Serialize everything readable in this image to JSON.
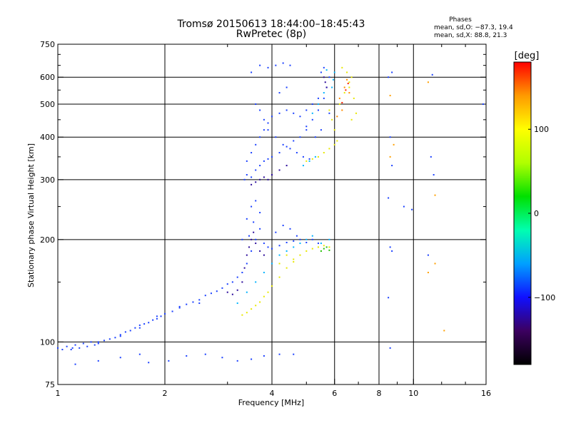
{
  "chart_data": {
    "type": "scatter",
    "title": "Tromsø 20150613 18:44:00–18:45:43",
    "subtitle": "RwPretec (8p)",
    "xlabel": "Frequency [MHz]",
    "ylabel": "Stationary phase Virtual Height [km]",
    "x_scale": "log",
    "y_scale": "log",
    "xlim": [
      1,
      16
    ],
    "ylim": [
      75,
      750
    ],
    "x_ticks": [
      1,
      2,
      4,
      6,
      8,
      10,
      16
    ],
    "x_tick_labels": [
      "1",
      "2",
      "4",
      "6",
      "8",
      "10",
      "16"
    ],
    "y_ticks": [
      75,
      100,
      200,
      300,
      400,
      500,
      600,
      750
    ],
    "y_tick_labels": [
      "75",
      "100",
      "200",
      "300",
      "400",
      "500",
      "600",
      "750"
    ],
    "grid_x": [
      2,
      4,
      6,
      8,
      10
    ],
    "grid_y": [
      100,
      200,
      300,
      400,
      500,
      600
    ],
    "grid": true,
    "stats": {
      "heading": "Phases",
      "lines": [
        "mean, sd,O: −87.3, 19.4",
        "mean, sd,X:  88.8, 21.3"
      ]
    },
    "colorbar": {
      "label": "[deg]",
      "range": [
        -180,
        180
      ],
      "ticks": [
        100,
        0,
        -100
      ],
      "tick_labels": [
        "100",
        "0",
        "−100"
      ],
      "colors": [
        "#000000",
        "#3c0060",
        "#1010ff",
        "#00a0ff",
        "#00ffb0",
        "#00e000",
        "#b0ff00",
        "#ffff00",
        "#ff9a00",
        "#ff0000"
      ]
    },
    "series": [
      {
        "name": "",
        "color": "#1a40ff",
        "points": [
          [
            1.0,
            96
          ],
          [
            1.03,
            95
          ],
          [
            1.06,
            97
          ],
          [
            1.09,
            95
          ],
          [
            1.12,
            98
          ],
          [
            1.15,
            96
          ],
          [
            1.18,
            99
          ],
          [
            1.21,
            97
          ],
          [
            1.24,
            100
          ],
          [
            1.27,
            98
          ],
          [
            1.3,
            99
          ],
          [
            1.35,
            101
          ],
          [
            1.4,
            102
          ],
          [
            1.45,
            103
          ],
          [
            1.5,
            105
          ],
          [
            1.55,
            107
          ],
          [
            1.6,
            108
          ],
          [
            1.65,
            110
          ],
          [
            1.7,
            112
          ],
          [
            1.75,
            113
          ],
          [
            1.8,
            114
          ],
          [
            1.85,
            116
          ],
          [
            1.9,
            117
          ],
          [
            1.95,
            119
          ],
          [
            2.0,
            121
          ],
          [
            2.1,
            123
          ],
          [
            2.2,
            126
          ],
          [
            2.3,
            129
          ],
          [
            2.4,
            131
          ],
          [
            2.5,
            133
          ],
          [
            2.6,
            137
          ],
          [
            2.7,
            139
          ],
          [
            2.8,
            141
          ],
          [
            2.9,
            144
          ],
          [
            3.0,
            148
          ],
          [
            3.1,
            150
          ],
          [
            3.2,
            155
          ],
          [
            3.3,
            160
          ],
          [
            3.4,
            170
          ],
          [
            3.5,
            185
          ],
          [
            3.6,
            200
          ],
          [
            3.7,
            215
          ],
          [
            3.8,
            195
          ],
          [
            3.9,
            190
          ],
          [
            4.0,
            188
          ],
          [
            4.2,
            192
          ],
          [
            4.4,
            196
          ],
          [
            4.6,
            198
          ],
          [
            4.8,
            200
          ],
          [
            5.0,
            196
          ],
          [
            5.2,
            200
          ],
          [
            5.4,
            195
          ],
          [
            3.3,
            200
          ],
          [
            3.4,
            230
          ],
          [
            3.5,
            250
          ],
          [
            3.6,
            260
          ],
          [
            3.7,
            240
          ],
          [
            3.55,
            225
          ],
          [
            3.45,
            205
          ],
          [
            4.1,
            210
          ],
          [
            4.3,
            220
          ],
          [
            4.5,
            215
          ],
          [
            4.7,
            205
          ],
          [
            2.5,
            130
          ],
          [
            2.2,
            127
          ],
          [
            1.9,
            119
          ],
          [
            1.7,
            110
          ],
          [
            1.5,
            104
          ],
          [
            1.3,
            100
          ],
          [
            1.1,
            96
          ],
          [
            1.12,
            86
          ],
          [
            1.3,
            88
          ],
          [
            1.5,
            90
          ],
          [
            1.7,
            92
          ],
          [
            1.8,
            87
          ],
          [
            2.05,
            88
          ],
          [
            2.3,
            91
          ],
          [
            2.6,
            92
          ],
          [
            2.9,
            90
          ],
          [
            3.2,
            88
          ],
          [
            3.5,
            89
          ],
          [
            3.8,
            91
          ],
          [
            4.2,
            92
          ],
          [
            4.6,
            92
          ],
          [
            3.35,
            300
          ],
          [
            3.4,
            310
          ],
          [
            3.5,
            305
          ],
          [
            3.6,
            320
          ],
          [
            3.7,
            330
          ],
          [
            3.8,
            340
          ],
          [
            3.9,
            345
          ],
          [
            4.0,
            350
          ],
          [
            4.2,
            360
          ],
          [
            4.4,
            375
          ],
          [
            4.6,
            390
          ],
          [
            4.8,
            400
          ],
          [
            5.0,
            420
          ],
          [
            5.2,
            450
          ],
          [
            5.4,
            480
          ],
          [
            5.6,
            520
          ],
          [
            5.7,
            560
          ],
          [
            5.8,
            600
          ],
          [
            5.6,
            640
          ],
          [
            5.5,
            620
          ],
          [
            3.4,
            340
          ],
          [
            3.5,
            360
          ],
          [
            3.6,
            380
          ],
          [
            3.7,
            400
          ],
          [
            3.8,
            420
          ],
          [
            3.9,
            440
          ],
          [
            4.0,
            460
          ],
          [
            4.2,
            470
          ],
          [
            4.4,
            480
          ],
          [
            4.6,
            470
          ],
          [
            4.8,
            460
          ],
          [
            5.0,
            480
          ],
          [
            5.2,
            500
          ],
          [
            5.4,
            520
          ],
          [
            3.6,
            500
          ],
          [
            3.7,
            480
          ],
          [
            3.8,
            450
          ],
          [
            3.9,
            420
          ],
          [
            4.1,
            400
          ],
          [
            4.3,
            380
          ],
          [
            4.5,
            370
          ],
          [
            4.7,
            360
          ],
          [
            4.9,
            350
          ],
          [
            5.1,
            345
          ],
          [
            3.5,
            620
          ],
          [
            3.7,
            650
          ],
          [
            3.9,
            640
          ],
          [
            4.1,
            650
          ],
          [
            4.3,
            660
          ],
          [
            4.5,
            650
          ],
          [
            4.4,
            560
          ],
          [
            4.2,
            540
          ],
          [
            5.0,
            430
          ],
          [
            5.3,
            400
          ],
          [
            5.5,
            420
          ],
          [
            5.8,
            470
          ]
        ]
      },
      {
        "name": "",
        "color": "#2a0a9a",
        "points": [
          [
            3.0,
            140
          ],
          [
            3.1,
            138
          ],
          [
            3.2,
            142
          ],
          [
            3.3,
            150
          ],
          [
            3.35,
            165
          ],
          [
            3.4,
            180
          ],
          [
            3.45,
            190
          ],
          [
            3.5,
            200
          ],
          [
            3.55,
            210
          ],
          [
            3.6,
            195
          ],
          [
            3.7,
            185
          ],
          [
            3.8,
            180
          ],
          [
            3.5,
            290
          ],
          [
            3.6,
            295
          ],
          [
            3.7,
            300
          ],
          [
            3.8,
            305
          ],
          [
            3.9,
            300
          ],
          [
            4.0,
            310
          ],
          [
            4.2,
            320
          ],
          [
            4.4,
            330
          ],
          [
            5.6,
            600
          ],
          [
            5.65,
            580
          ],
          [
            5.7,
            560
          ]
        ]
      },
      {
        "name": "",
        "color": "#00b4ff",
        "points": [
          [
            3.2,
            130
          ],
          [
            3.4,
            140
          ],
          [
            3.6,
            150
          ],
          [
            3.8,
            160
          ],
          [
            4.0,
            170
          ],
          [
            4.2,
            180
          ],
          [
            4.4,
            185
          ],
          [
            4.6,
            190
          ],
          [
            4.8,
            195
          ],
          [
            5.0,
            200
          ],
          [
            5.2,
            205
          ],
          [
            5.5,
            195
          ],
          [
            5.8,
            200
          ],
          [
            5.9,
            560
          ],
          [
            5.95,
            590
          ],
          [
            6.0,
            620
          ],
          [
            5.7,
            630
          ],
          [
            5.2,
            470
          ],
          [
            5.4,
            500
          ],
          [
            5.6,
            540
          ],
          [
            4.9,
            330
          ],
          [
            5.1,
            340
          ],
          [
            5.3,
            350
          ]
        ]
      },
      {
        "name": "",
        "color": "#e8e800",
        "points": [
          [
            3.3,
            120
          ],
          [
            3.4,
            122
          ],
          [
            3.5,
            125
          ],
          [
            3.6,
            128
          ],
          [
            3.7,
            131
          ],
          [
            3.8,
            136
          ],
          [
            3.9,
            140
          ],
          [
            4.0,
            146
          ],
          [
            4.2,
            155
          ],
          [
            4.4,
            165
          ],
          [
            4.6,
            172
          ],
          [
            4.8,
            180
          ],
          [
            5.0,
            185
          ],
          [
            5.2,
            188
          ],
          [
            5.4,
            190
          ],
          [
            5.6,
            192
          ],
          [
            5.8,
            190
          ],
          [
            5.0,
            340
          ],
          [
            5.2,
            345
          ],
          [
            5.4,
            350
          ],
          [
            5.6,
            360
          ],
          [
            5.8,
            370
          ],
          [
            6.0,
            380
          ],
          [
            6.1,
            390
          ],
          [
            6.0,
            420
          ],
          [
            5.9,
            450
          ],
          [
            5.8,
            480
          ],
          [
            6.2,
            500
          ],
          [
            6.4,
            540
          ],
          [
            6.6,
            580
          ],
          [
            6.7,
            600
          ],
          [
            6.5,
            620
          ],
          [
            6.3,
            640
          ],
          [
            6.6,
            560
          ],
          [
            6.8,
            520
          ],
          [
            6.9,
            470
          ],
          [
            6.7,
            450
          ],
          [
            4.2,
            170
          ],
          [
            4.4,
            180
          ],
          [
            4.6,
            175
          ]
        ]
      },
      {
        "name": "",
        "color": "#ff8c00",
        "points": [
          [
            6.2,
            520
          ],
          [
            6.4,
            560
          ],
          [
            6.5,
            590
          ],
          [
            6.6,
            540
          ],
          [
            6.3,
            480
          ],
          [
            6.1,
            460
          ]
        ]
      },
      {
        "name": "",
        "color": "#ff2000",
        "points": [
          [
            6.3,
            505
          ],
          [
            6.45,
            550
          ],
          [
            6.55,
            575
          ]
        ]
      },
      {
        "name": "",
        "color": "#20c000",
        "points": [
          [
            5.5,
            185
          ],
          [
            5.6,
            188
          ],
          [
            5.7,
            190
          ],
          [
            5.8,
            186
          ]
        ]
      },
      {
        "name": "",
        "color": "#1a40ff",
        "points": [
          [
            8.5,
            600
          ],
          [
            8.7,
            620
          ],
          [
            8.6,
            400
          ],
          [
            8.7,
            330
          ],
          [
            8.5,
            265
          ],
          [
            8.6,
            190
          ],
          [
            8.7,
            185
          ],
          [
            8.5,
            135
          ],
          [
            8.6,
            96
          ],
          [
            9.4,
            250
          ],
          [
            9.9,
            245
          ],
          [
            11.0,
            180
          ],
          [
            11.3,
            610
          ],
          [
            11.4,
            310
          ],
          [
            11.2,
            350
          ],
          [
            15.7,
            500
          ]
        ]
      },
      {
        "name": "",
        "color": "#ffa000",
        "points": [
          [
            8.6,
            530
          ],
          [
            8.6,
            350
          ],
          [
            11.0,
            580
          ],
          [
            11.0,
            160
          ],
          [
            11.5,
            270
          ],
          [
            12.2,
            108
          ],
          [
            8.8,
            380
          ],
          [
            11.5,
            170
          ]
        ]
      }
    ]
  }
}
